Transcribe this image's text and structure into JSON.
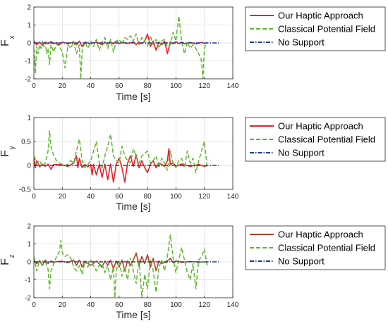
{
  "chart_data": [
    {
      "type": "line",
      "ylabel": "F",
      "ylabel_sub": "x",
      "xlabel": "Time [s]",
      "xlim": [
        0,
        140
      ],
      "ylim": [
        -2,
        2
      ],
      "xticks": [
        0,
        20,
        40,
        60,
        80,
        100,
        120,
        140
      ],
      "yticks": [
        -2,
        -1,
        0,
        1,
        2
      ],
      "grid": true,
      "legend_position": "right",
      "series": [
        {
          "name": "Our Haptic Approach",
          "color": "#e8202a",
          "style": "solid",
          "x": [
            0,
            2,
            4,
            6,
            8,
            10,
            12,
            14,
            16,
            18,
            20,
            24,
            28,
            30,
            32,
            34,
            36,
            40,
            44,
            48,
            50,
            52,
            54,
            56,
            58,
            60,
            62,
            66,
            70,
            72,
            74,
            76,
            78,
            80,
            82,
            84,
            86,
            88,
            90,
            92,
            94,
            96,
            98,
            100,
            102,
            104,
            106,
            110,
            114,
            118,
            120,
            122
          ],
          "y": [
            0.1,
            -0.1,
            0.05,
            -0.15,
            0.05,
            -0.05,
            0.08,
            -0.05,
            0.02,
            -0.1,
            0.05,
            -0.05,
            0.05,
            -0.1,
            0.1,
            -0.2,
            0.05,
            -0.05,
            0.05,
            -0.1,
            0.05,
            -0.05,
            0.05,
            -0.05,
            0.1,
            -0.05,
            0.05,
            -0.03,
            0.05,
            -0.1,
            0.05,
            -0.05,
            0.1,
            0.5,
            -0.2,
            0.1,
            -0.4,
            0.05,
            -0.1,
            0.1,
            -0.6,
            0.05,
            -0.05,
            0.08,
            -0.05,
            0.05,
            -0.05,
            0.03,
            -0.05,
            0.03,
            -0.02,
            0
          ]
        },
        {
          "name": "Classical Potential Field",
          "color": "#5cb82e",
          "style": "dashed",
          "x": [
            0,
            1,
            2,
            3,
            4,
            5,
            6,
            7,
            8,
            9,
            10,
            11,
            12,
            14,
            16,
            18,
            20,
            22,
            24,
            26,
            28,
            30,
            32,
            33,
            34,
            36,
            38,
            40,
            42,
            44,
            46,
            48,
            50,
            52,
            54,
            56,
            58,
            60,
            62,
            64,
            66,
            68,
            70,
            72,
            74,
            76,
            78,
            80,
            82,
            84,
            86,
            88,
            90,
            92,
            94,
            96,
            98,
            100,
            102,
            104,
            106,
            108,
            110,
            112,
            114,
            116,
            118,
            119,
            120,
            121,
            122
          ],
          "y": [
            -0.3,
            -1.7,
            -0.2,
            -0.6,
            -0.1,
            -0.3,
            0.1,
            -0.2,
            0.05,
            -0.6,
            -0.3,
            -1.2,
            -0.1,
            -0.5,
            -0.05,
            -0.2,
            -0.5,
            -1.4,
            -0.1,
            -0.3,
            0.1,
            -0.6,
            -0.1,
            -2.0,
            -0.4,
            0.05,
            -0.3,
            0.1,
            -0.2,
            0.2,
            -0.4,
            0.05,
            0.3,
            -0.3,
            0.2,
            -0.5,
            0.1,
            0.2,
            -0.1,
            0.3,
            0.2,
            0.4,
            0.1,
            0.5,
            -0.1,
            0.3,
            0.1,
            -0.2,
            0.4,
            -0.1,
            0.2,
            -0.3,
            0.1,
            0.2,
            -0.2,
            -0.1,
            0.6,
            0.1,
            1.5,
            0.1,
            -0.6,
            0.05,
            -0.3,
            -0.1,
            -0.3,
            -0.6,
            -1.0,
            -2.0,
            -0.3,
            -0.1,
            -0.05
          ]
        },
        {
          "name": "No Support",
          "color": "#1f3c88",
          "style": "dashdot",
          "x": [
            0,
            130
          ],
          "y": [
            0,
            0
          ]
        }
      ]
    },
    {
      "type": "line",
      "ylabel": "F",
      "ylabel_sub": "y",
      "xlabel": "Time [s]",
      "xlim": [
        0,
        140
      ],
      "ylim": [
        -0.5,
        1
      ],
      "xticks": [
        0,
        20,
        40,
        60,
        80,
        100,
        120,
        140
      ],
      "yticks": [
        -0.5,
        0,
        0.5,
        1
      ],
      "grid": true,
      "legend_position": "right",
      "series": [
        {
          "name": "Our Haptic Approach",
          "color": "#e8202a",
          "style": "solid",
          "x": [
            0,
            1,
            2,
            4,
            6,
            8,
            10,
            12,
            14,
            20,
            24,
            28,
            30,
            31,
            32,
            34,
            36,
            38,
            40,
            41,
            42,
            44,
            46,
            48,
            50,
            52,
            54,
            56,
            58,
            60,
            62,
            64,
            66,
            68,
            70,
            72,
            74,
            76,
            78,
            80,
            82,
            84,
            86,
            88,
            90,
            92,
            94,
            95,
            96,
            98,
            100,
            104,
            110,
            116,
            120,
            122
          ],
          "y": [
            0.15,
            -0.05,
            0.1,
            -0.03,
            0.02,
            -0.02,
            0.03,
            -0.08,
            0.02,
            0.01,
            -0.02,
            0.05,
            0.2,
            -0.05,
            0.15,
            -0.05,
            0.02,
            -0.03,
            0.02,
            -0.2,
            0.02,
            -0.2,
            0.02,
            -0.25,
            0.03,
            -0.3,
            0.03,
            -0.35,
            0.03,
            0.15,
            -0.05,
            -0.35,
            0.05,
            0.2,
            -0.02,
            0.22,
            -0.05,
            0.1,
            -0.05,
            -0.15,
            0.03,
            0.1,
            -0.05,
            0.05,
            0.02,
            -0.02,
            0.1,
            0.35,
            0.02,
            0.05,
            -0.02,
            0.03,
            -0.02,
            0.02,
            -0.02,
            0
          ]
        },
        {
          "name": "Classical Potential Field",
          "color": "#5cb82e",
          "style": "dashed",
          "x": [
            0,
            2,
            4,
            6,
            8,
            10,
            11,
            12,
            14,
            16,
            18,
            20,
            22,
            24,
            26,
            28,
            30,
            32,
            34,
            36,
            38,
            40,
            42,
            44,
            46,
            48,
            50,
            52,
            54,
            56,
            58,
            60,
            62,
            64,
            66,
            68,
            70,
            72,
            74,
            76,
            78,
            80,
            82,
            84,
            86,
            88,
            90,
            92,
            94,
            96,
            98,
            100,
            102,
            104,
            106,
            108,
            110,
            112,
            114,
            116,
            118,
            120,
            122
          ],
          "y": [
            0.2,
            0.05,
            0.1,
            -0.02,
            0.05,
            0.3,
            0.72,
            0.4,
            0.2,
            0.1,
            0.05,
            0.02,
            0.0,
            0.03,
            0.1,
            0.05,
            0.3,
            0.55,
            0.1,
            -0.05,
            0.02,
            0.1,
            0.3,
            0.5,
            0.05,
            -0.05,
            0.2,
            0.4,
            0.65,
            0.2,
            0.1,
            0.05,
            0.4,
            0.2,
            0.1,
            0.05,
            0.35,
            0.2,
            0.05,
            0.2,
            0.25,
            0.3,
            0.05,
            0.1,
            0.2,
            -0.05,
            0.15,
            0.05,
            -0.1,
            0.3,
            0.05,
            -0.05,
            0.1,
            0.15,
            -0.05,
            0.3,
            0.05,
            0.15,
            -0.15,
            0.1,
            0.3,
            0.5,
            -0.05
          ]
        },
        {
          "name": "No Support",
          "color": "#1f3c88",
          "style": "dashdot",
          "x": [
            0,
            130
          ],
          "y": [
            0,
            0
          ]
        }
      ]
    },
    {
      "type": "line",
      "ylabel": "F",
      "ylabel_sub": "z",
      "xlabel": "Time [s]",
      "xlim": [
        0,
        140
      ],
      "ylim": [
        -2,
        2
      ],
      "xticks": [
        0,
        20,
        40,
        60,
        80,
        100,
        120,
        140
      ],
      "yticks": [
        -2,
        -1,
        0,
        1,
        2
      ],
      "grid": true,
      "legend_position": "right",
      "series": [
        {
          "name": "Our Haptic Approach",
          "color": "#b5432a",
          "style": "solid",
          "x": [
            0,
            2,
            4,
            6,
            8,
            10,
            12,
            14,
            16,
            20,
            24,
            28,
            30,
            32,
            34,
            36,
            40,
            44,
            48,
            50,
            52,
            54,
            56,
            58,
            60,
            62,
            64,
            66,
            68,
            70,
            72,
            74,
            76,
            78,
            80,
            82,
            84,
            86,
            88,
            90,
            94,
            96,
            98,
            100,
            104,
            110,
            116,
            122
          ],
          "y": [
            0.1,
            -0.1,
            0.05,
            -0.2,
            0.1,
            -0.1,
            0.05,
            -0.05,
            0.02,
            0.03,
            -0.05,
            0.1,
            -0.2,
            0.1,
            -0.3,
            0.05,
            -0.2,
            0.05,
            -0.3,
            0.05,
            -0.2,
            0.1,
            -0.4,
            0.05,
            -0.3,
            0.1,
            -0.5,
            0.05,
            -0.2,
            0.1,
            0.5,
            -0.2,
            0.3,
            -0.1,
            0.4,
            -0.3,
            0.2,
            -0.5,
            0.05,
            -0.1,
            0.05,
            0.2,
            -0.05,
            0.05,
            -0.03,
            0.02,
            -0.02,
            0
          ]
        },
        {
          "name": "Classical Potential Field",
          "color": "#5cb82e",
          "style": "dashed",
          "x": [
            0,
            2,
            4,
            6,
            8,
            10,
            11,
            12,
            14,
            16,
            18,
            19,
            20,
            22,
            24,
            26,
            28,
            30,
            32,
            34,
            36,
            38,
            40,
            42,
            44,
            46,
            48,
            50,
            52,
            54,
            56,
            57,
            58,
            60,
            62,
            64,
            66,
            68,
            70,
            72,
            74,
            76,
            78,
            80,
            82,
            84,
            86,
            88,
            90,
            92,
            94,
            96,
            98,
            100,
            102,
            104,
            106,
            108,
            110,
            112,
            114,
            116,
            118,
            120,
            122
          ],
          "y": [
            0.3,
            -0.5,
            0.1,
            -0.2,
            0.05,
            -0.4,
            -1.5,
            -0.5,
            -0.1,
            0.3,
            0.6,
            1.2,
            0.5,
            0.3,
            0.4,
            0.2,
            -0.3,
            -0.5,
            -0.2,
            -0.7,
            0.05,
            -0.3,
            0.1,
            -0.2,
            -0.5,
            -0.2,
            -0.1,
            -0.6,
            -0.2,
            -1.0,
            -0.3,
            -2.0,
            -0.5,
            0.1,
            -0.8,
            -0.3,
            -1.0,
            0.2,
            -0.5,
            -1.2,
            0.1,
            -2.0,
            -0.7,
            -1.5,
            0.1,
            -0.5,
            -1.7,
            -0.3,
            0.1,
            -0.5,
            0.3,
            1.5,
            0.2,
            -0.6,
            0.1,
            0.8,
            0.1,
            -0.6,
            -1.0,
            -0.1,
            -1.5,
            0.1,
            0.3,
            0.7,
            -0.2
          ]
        },
        {
          "name": "No Support",
          "color": "#1f3c88",
          "style": "dashdot",
          "x": [
            0,
            130
          ],
          "y": [
            0,
            0
          ]
        }
      ]
    }
  ]
}
